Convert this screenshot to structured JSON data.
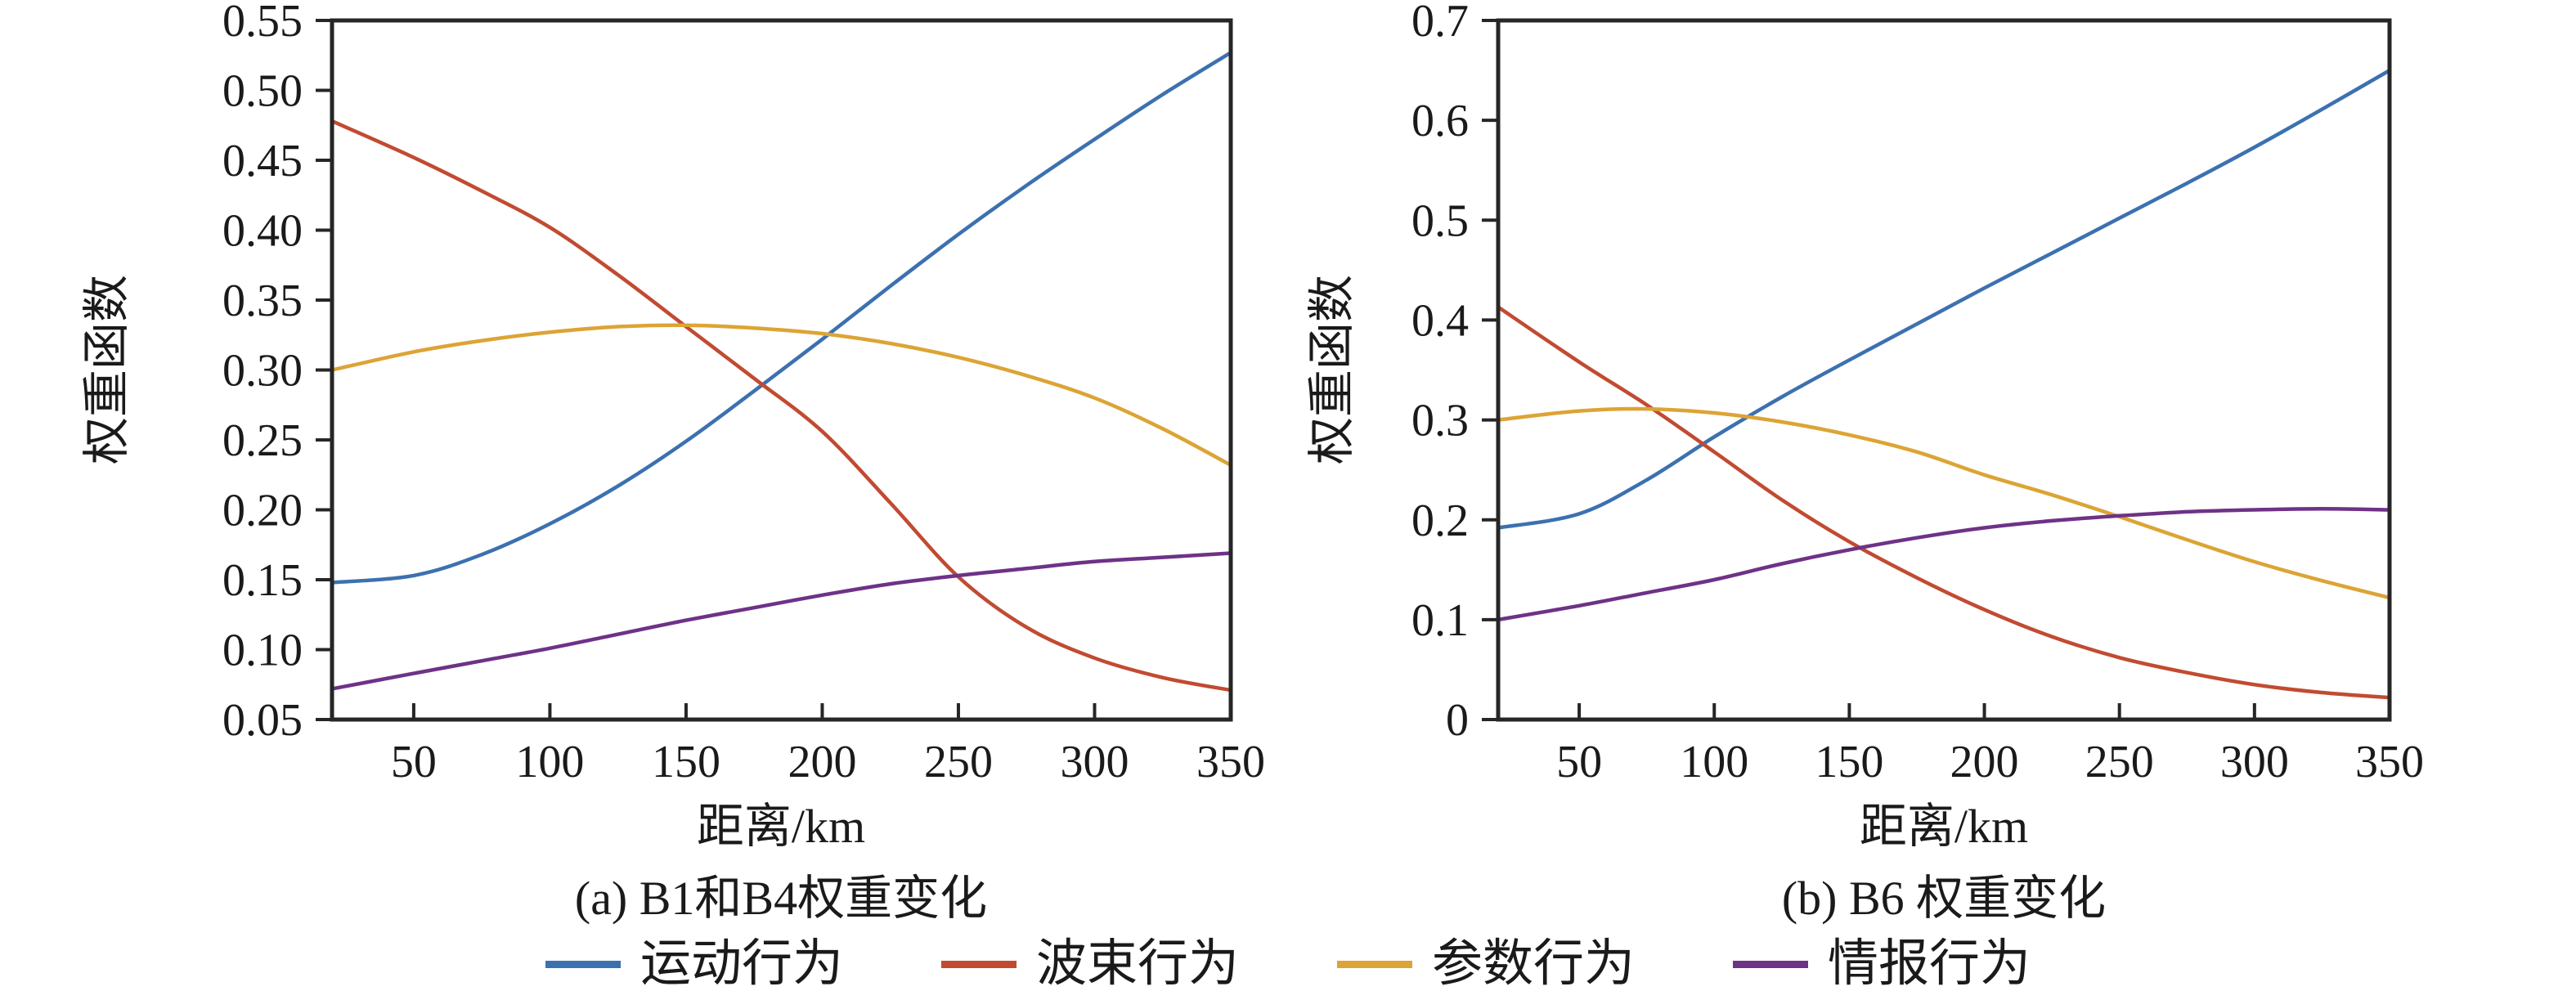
{
  "figure": {
    "background": "#ffffff",
    "axis_color": "#262626",
    "text_color": "#1a1a1a"
  },
  "legend": {
    "items": [
      {
        "label": "运动行为",
        "color": "#3C71B0"
      },
      {
        "label": "波束行为",
        "color": "#C14B31"
      },
      {
        "label": "参数行为",
        "color": "#DCA435"
      },
      {
        "label": "情报行为",
        "color": "#6E3287"
      }
    ]
  },
  "chart_data": [
    {
      "type": "line",
      "caption": "(a) B1和B4权重变化",
      "xlabel": "距离/km",
      "ylabel": "权重函数",
      "xlim": [
        20,
        350
      ],
      "ylim": [
        0.05,
        0.55
      ],
      "grid": false,
      "xticks": [
        50,
        100,
        150,
        200,
        250,
        300,
        350
      ],
      "ytick_values": [
        0.05,
        0.1,
        0.15,
        0.2,
        0.25,
        0.3,
        0.35,
        0.4,
        0.45,
        0.5,
        0.55
      ],
      "ytick_labels": [
        "0.05",
        "0.10",
        "0.15",
        "0.20",
        "0.25",
        "0.30",
        "0.35",
        "0.40",
        "0.45",
        "0.50",
        "0.55"
      ],
      "x": [
        20,
        50,
        75,
        100,
        125,
        150,
        175,
        200,
        225,
        250,
        275,
        300,
        325,
        350
      ],
      "series": [
        {
          "name": "运动行为",
          "color": "#3C71B0",
          "values": [
            0.148,
            0.153,
            0.168,
            0.19,
            0.217,
            0.249,
            0.285,
            0.322,
            0.36,
            0.397,
            0.432,
            0.465,
            0.497,
            0.527
          ]
        },
        {
          "name": "波束行为",
          "color": "#C14B31",
          "values": [
            0.478,
            0.452,
            0.428,
            0.402,
            0.368,
            0.331,
            0.294,
            0.256,
            0.205,
            0.152,
            0.116,
            0.094,
            0.08,
            0.071
          ]
        },
        {
          "name": "参数行为",
          "color": "#DCA435",
          "values": [
            0.3,
            0.313,
            0.321,
            0.327,
            0.331,
            0.332,
            0.33,
            0.326,
            0.319,
            0.309,
            0.296,
            0.28,
            0.258,
            0.232
          ]
        },
        {
          "name": "情报行为",
          "color": "#6E3287",
          "values": [
            0.072,
            0.083,
            0.092,
            0.101,
            0.111,
            0.121,
            0.13,
            0.139,
            0.147,
            0.153,
            0.158,
            0.163,
            0.166,
            0.169
          ]
        }
      ]
    },
    {
      "type": "line",
      "caption": "(b) B6 权重变化",
      "xlabel": "距离/km",
      "ylabel": "权重函数",
      "xlim": [
        20,
        350
      ],
      "ylim": [
        0,
        0.7
      ],
      "grid": false,
      "xticks": [
        50,
        100,
        150,
        200,
        250,
        300,
        350
      ],
      "ytick_values": [
        0,
        0.1,
        0.2,
        0.3,
        0.4,
        0.5,
        0.6,
        0.7
      ],
      "ytick_labels": [
        "0",
        "0.1",
        "0.2",
        "0.3",
        "0.4",
        "0.5",
        "0.6",
        "0.7"
      ],
      "x": [
        20,
        50,
        75,
        100,
        125,
        150,
        175,
        200,
        225,
        250,
        275,
        300,
        325,
        350
      ],
      "series": [
        {
          "name": "运动行为",
          "color": "#3C71B0",
          "values": [
            0.192,
            0.206,
            0.24,
            0.283,
            0.323,
            0.36,
            0.396,
            0.432,
            0.467,
            0.502,
            0.537,
            0.573,
            0.611,
            0.65
          ]
        },
        {
          "name": "波束行为",
          "color": "#C14B31",
          "values": [
            0.413,
            0.358,
            0.315,
            0.268,
            0.22,
            0.178,
            0.142,
            0.11,
            0.083,
            0.062,
            0.047,
            0.035,
            0.027,
            0.022
          ]
        },
        {
          "name": "参数行为",
          "color": "#DCA435",
          "values": [
            0.3,
            0.309,
            0.311,
            0.307,
            0.298,
            0.285,
            0.268,
            0.245,
            0.225,
            0.203,
            0.18,
            0.158,
            0.139,
            0.122
          ]
        },
        {
          "name": "情报行为",
          "color": "#6E3287",
          "values": [
            0.1,
            0.114,
            0.127,
            0.14,
            0.156,
            0.17,
            0.182,
            0.192,
            0.199,
            0.204,
            0.208,
            0.21,
            0.211,
            0.21
          ]
        }
      ]
    }
  ]
}
